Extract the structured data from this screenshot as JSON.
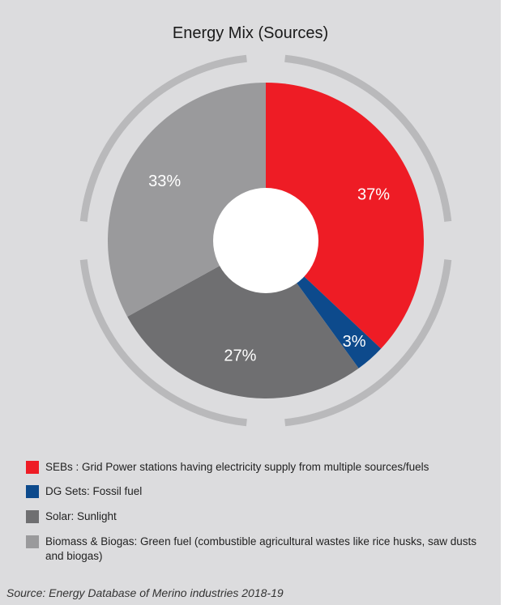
{
  "chart_data": {
    "type": "pie",
    "title": "Energy Mix (Sources)",
    "slices": [
      {
        "label": "SEBs : Grid Power stations having electricity supply from multiple sources/fuels",
        "value": 37,
        "value_label": "37%",
        "color": "#ee1c25"
      },
      {
        "label": "DG Sets: Fossil fuel",
        "value": 3,
        "value_label": "3%",
        "color": "#0d4a8c"
      },
      {
        "label": "Solar: Sunlight",
        "value": 27,
        "value_label": "27%",
        "color": "#6f6f71"
      },
      {
        "label": "Biomass & Biogas: Green fuel (combustible agricultural wastes like rice husks, saw dusts and biogas)",
        "value": 33,
        "value_label": "33%",
        "color": "#9a9a9c"
      }
    ],
    "legend_placement": "bottom"
  },
  "source": "Source: Energy Database of Merino industries 2018-19"
}
